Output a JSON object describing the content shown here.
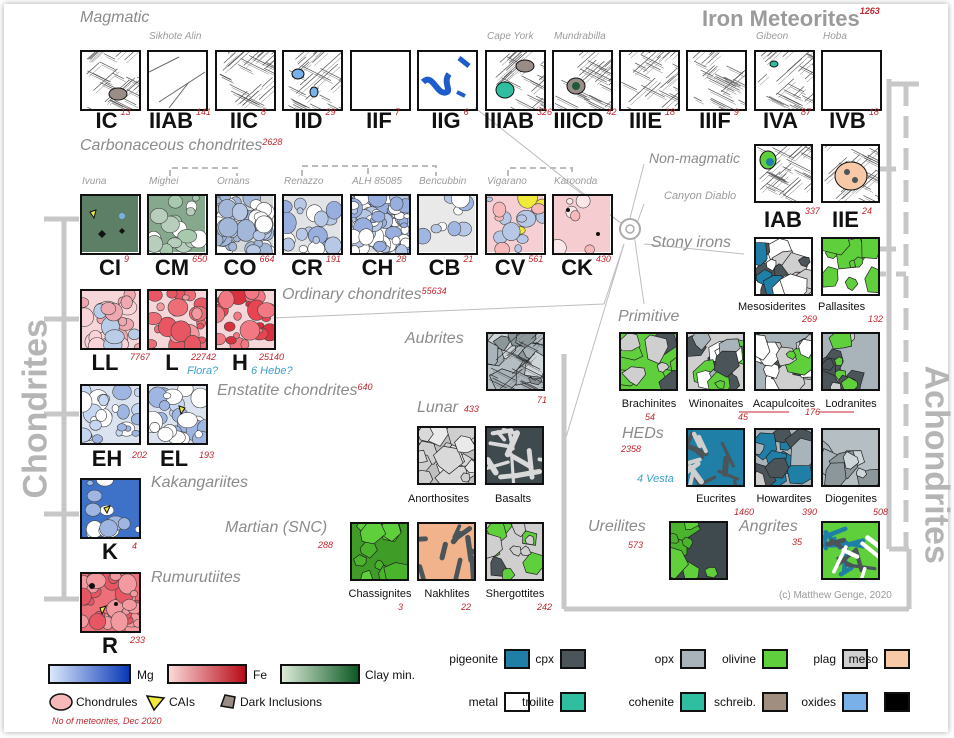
{
  "title": "Iron Meteorites",
  "title_count": "1263",
  "magmatic_label": "Magmatic",
  "irons": [
    {
      "name": "IC",
      "count": "13",
      "locality": ""
    },
    {
      "name": "IIAB",
      "count": "141",
      "locality": "Sikhote Alin"
    },
    {
      "name": "IIC",
      "count": "8",
      "locality": ""
    },
    {
      "name": "IID",
      "count": "29",
      "locality": ""
    },
    {
      "name": "IIF",
      "count": "7",
      "locality": ""
    },
    {
      "name": "IIG",
      "count": "6",
      "locality": ""
    },
    {
      "name": "IIIAB",
      "count": "326",
      "locality": "Cape York"
    },
    {
      "name": "IIICD",
      "count": "42",
      "locality": "Mundrabilla"
    },
    {
      "name": "IIIE",
      "count": "18",
      "locality": ""
    },
    {
      "name": "IIIF",
      "count": "9",
      "locality": ""
    },
    {
      "name": "IVA",
      "count": "87",
      "locality": "Gibeon"
    },
    {
      "name": "IVB",
      "count": "18",
      "locality": "Hoba"
    }
  ],
  "carbonaceous": {
    "label": "Carbonaceous chondrites",
    "count": "2628",
    "groups": [
      {
        "name": "CI",
        "count": "9",
        "locality": "Ivuna"
      },
      {
        "name": "CM",
        "count": "650",
        "locality": "Mighei"
      },
      {
        "name": "CO",
        "count": "664",
        "locality": "Ornans"
      },
      {
        "name": "CR",
        "count": "191",
        "locality": "Renazzo"
      },
      {
        "name": "CH",
        "count": "28",
        "locality": "ALH 85085"
      },
      {
        "name": "CB",
        "count": "21",
        "locality": "Bencubbin"
      },
      {
        "name": "CV",
        "count": "561",
        "locality": "Vigarano"
      },
      {
        "name": "CK",
        "count": "430",
        "locality": "Karoonda"
      }
    ]
  },
  "nonmagmatic": {
    "label": "Non-magmatic",
    "locality": "Canyon Diablo",
    "groups": [
      {
        "name": "IAB",
        "count": "337"
      },
      {
        "name": "IIE",
        "count": "24"
      }
    ]
  },
  "stony_irons": {
    "label": "Stony irons",
    "groups": [
      {
        "name": "Mesosiderites",
        "count": "269"
      },
      {
        "name": "Pallasites",
        "count": "132"
      }
    ]
  },
  "ordinary": {
    "label": "Ordinary chondrites",
    "count": "55634",
    "groups": [
      {
        "name": "LL",
        "count": "7767"
      },
      {
        "name": "L",
        "count": "22742",
        "parent": "Flora?"
      },
      {
        "name": "H",
        "count": "25140",
        "parent": "6 Hebe?"
      }
    ]
  },
  "enstatite": {
    "label": "Enstatite chondrites",
    "count": "640",
    "groups": [
      {
        "name": "EH",
        "count": "202"
      },
      {
        "name": "EL",
        "count": "193"
      }
    ]
  },
  "kakangari": {
    "label": "Kakangariites",
    "name": "K",
    "count": "4"
  },
  "rumuruti": {
    "label": "Rumurutiites",
    "name": "R",
    "count": "233"
  },
  "chondrites_label": "Chondrites",
  "achondrites_label": "Achondrites",
  "aubrites": {
    "label": "Aubrites",
    "count": "71"
  },
  "lunar": {
    "label": "Lunar",
    "count": "433",
    "groups": [
      "Anorthosites",
      "Basalts"
    ]
  },
  "martian": {
    "label": "Martian (SNC)",
    "count": "288",
    "groups": [
      {
        "name": "Chassignites",
        "count": "3"
      },
      {
        "name": "Nakhlites",
        "count": "22"
      },
      {
        "name": "Shergottites",
        "count": "242"
      }
    ]
  },
  "primitive": {
    "label": "Primitive",
    "groups": [
      {
        "name": "Brachinites",
        "count": "54"
      },
      {
        "name": "Winonaites",
        "count": "45"
      },
      {
        "name": "Acapulcoites",
        "count": ""
      },
      {
        "name": "Lodranites",
        "count": ""
      }
    ],
    "pair_count": "176"
  },
  "heds": {
    "label": "HEDs",
    "count": "2358",
    "parent": "4 Vesta",
    "groups": [
      {
        "name": "Eucrites",
        "count": "1460"
      },
      {
        "name": "Howardites",
        "count": "390"
      },
      {
        "name": "Diogenites",
        "count": "508"
      }
    ]
  },
  "ureilites": {
    "label": "Ureilites",
    "count": "573"
  },
  "angrites": {
    "label": "Angrites",
    "count": "35"
  },
  "credit": "(c) Matthew Genge, 2020",
  "legend_left": {
    "mg": "Mg",
    "fe": "Fe",
    "clay": "Clay min.",
    "chondrules": "Chondrules",
    "cais": "CAIs",
    "dark": "Dark Inclusions",
    "note": "No of meteorites, Dec 2020"
  },
  "legend_minerals": [
    {
      "label": "pigeonite",
      "color": "#1f7fa6"
    },
    {
      "label": "cpx",
      "color": "#4a5459"
    },
    {
      "label": "opx",
      "color": "#a9b4ba"
    },
    {
      "label": "olivine",
      "color": "#5fcf3c"
    },
    {
      "label": "plag",
      "color": "#cfcfcf"
    },
    {
      "label": "meso",
      "color": "#f7c9a6"
    },
    {
      "label": "metal",
      "color": "#ffffff"
    },
    {
      "label": "troilite",
      "color": "#2fbfa0"
    },
    {
      "label": "cohenite",
      "color": "#2fbfa0"
    },
    {
      "label": "schreib.",
      "color": "#a08e80"
    },
    {
      "label": "oxides",
      "color": "#7ab0e8"
    },
    {
      "label": "",
      "color": "#000000"
    }
  ]
}
